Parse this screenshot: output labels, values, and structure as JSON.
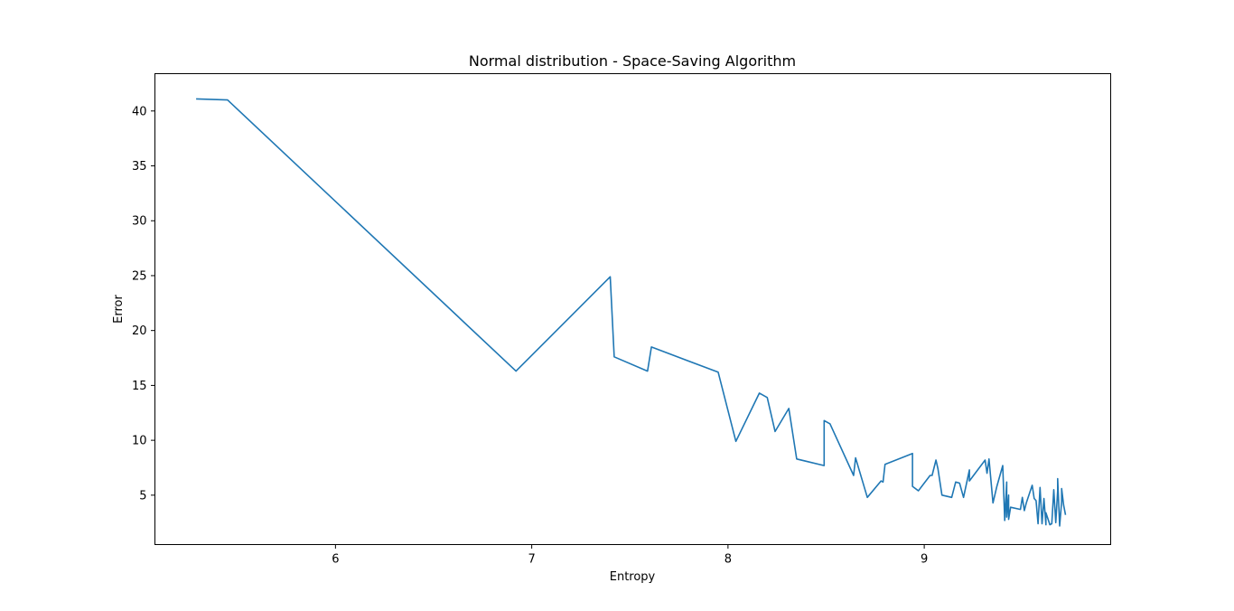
{
  "chart_data": {
    "type": "line",
    "title": "Normal distribution - Space-Saving Algorithm",
    "xlabel": "Entropy",
    "ylabel": "Error",
    "xlim": [
      5.08,
      9.95
    ],
    "ylim": [
      0.5,
      43.4
    ],
    "xticks": [
      6,
      7,
      8,
      9
    ],
    "yticks": [
      5,
      10,
      15,
      20,
      25,
      30,
      35,
      40
    ],
    "grid": false,
    "legend": "none",
    "colors": {
      "line": "#1f77b4",
      "axes": "#000000",
      "background": "#ffffff"
    },
    "series": [
      {
        "x": [
          5.29,
          5.45,
          6.92,
          7.4,
          7.42,
          7.59,
          7.61,
          7.95,
          8.04,
          8.16,
          8.2,
          8.24,
          8.31,
          8.35,
          8.49,
          8.49,
          8.52,
          8.64,
          8.65,
          8.71,
          8.78,
          8.79,
          8.8,
          8.94,
          8.94,
          8.97,
          9.03,
          9.04,
          9.06,
          9.07,
          9.09,
          9.14,
          9.16,
          9.18,
          9.2,
          9.23,
          9.23,
          9.31,
          9.32,
          9.33,
          9.35,
          9.37,
          9.4,
          9.41,
          9.42,
          9.42,
          9.43,
          9.43,
          9.44,
          9.49,
          9.5,
          9.51,
          9.52,
          9.55,
          9.56,
          9.57,
          9.58,
          9.59,
          9.6,
          9.61,
          9.62,
          9.62,
          9.64,
          9.65,
          9.66,
          9.67,
          9.68,
          9.68,
          9.69,
          9.7,
          9.7,
          9.71,
          9.72
        ],
        "y": [
          41.1,
          41.0,
          16.3,
          24.9,
          17.6,
          16.3,
          18.5,
          16.2,
          9.9,
          14.3,
          13.9,
          10.8,
          12.9,
          8.3,
          7.7,
          11.8,
          11.5,
          6.8,
          8.4,
          4.8,
          6.3,
          6.2,
          7.8,
          8.8,
          5.8,
          5.4,
          6.8,
          6.8,
          8.2,
          7.4,
          5.0,
          4.8,
          6.2,
          6.1,
          4.8,
          7.3,
          6.3,
          8.2,
          7.0,
          8.3,
          4.3,
          5.8,
          7.7,
          2.7,
          6.2,
          3.0,
          5.0,
          2.8,
          3.9,
          3.7,
          4.8,
          3.6,
          4.3,
          5.9,
          4.7,
          4.5,
          2.4,
          5.7,
          2.4,
          4.7,
          2.3,
          3.4,
          2.3,
          2.4,
          5.5,
          2.5,
          5.4,
          6.5,
          2.2,
          4.4,
          5.6,
          4.1,
          3.2
        ]
      }
    ]
  }
}
